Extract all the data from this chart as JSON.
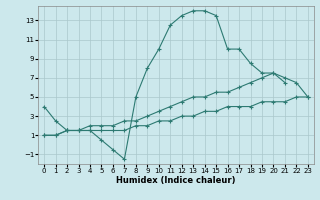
{
  "xlabel": "Humidex (Indice chaleur)",
  "bg_color": "#cce8ec",
  "grid_color": "#aac8cc",
  "line_color": "#2d7a72",
  "xlim": [
    -0.5,
    23.5
  ],
  "ylim": [
    -2.0,
    14.5
  ],
  "yticks": [
    -1,
    1,
    3,
    5,
    7,
    9,
    11,
    13
  ],
  "xticks": [
    0,
    1,
    2,
    3,
    4,
    5,
    6,
    7,
    8,
    9,
    10,
    11,
    12,
    13,
    14,
    15,
    16,
    17,
    18,
    19,
    20,
    21,
    22,
    23
  ],
  "line1_x": [
    0,
    1,
    2,
    3,
    4,
    5,
    6,
    7,
    8,
    9,
    10,
    11,
    12,
    13,
    14,
    15,
    16,
    17,
    18,
    19,
    20,
    21
  ],
  "line1_y": [
    4.0,
    2.5,
    1.5,
    1.5,
    1.5,
    0.5,
    -0.5,
    -1.5,
    5.0,
    8.0,
    10.0,
    12.5,
    13.5,
    14.0,
    14.0,
    13.5,
    10.0,
    10.0,
    8.5,
    7.5,
    7.5,
    6.5
  ],
  "line2_x": [
    0,
    1,
    2,
    3,
    4,
    5,
    6,
    7,
    8,
    9,
    10,
    11,
    12,
    13,
    14,
    15,
    16,
    17,
    18,
    19,
    20,
    21,
    22,
    23
  ],
  "line2_y": [
    1.0,
    1.0,
    1.5,
    1.5,
    2.0,
    2.0,
    2.0,
    2.5,
    2.5,
    3.0,
    3.5,
    4.0,
    4.5,
    5.0,
    5.0,
    5.5,
    5.5,
    6.0,
    6.5,
    7.0,
    7.5,
    7.0,
    6.5,
    5.0
  ],
  "line3_x": [
    0,
    1,
    2,
    3,
    4,
    5,
    6,
    7,
    8,
    9,
    10,
    11,
    12,
    13,
    14,
    15,
    16,
    17,
    18,
    19,
    20,
    21,
    22,
    23
  ],
  "line3_y": [
    1.0,
    1.0,
    1.5,
    1.5,
    1.5,
    1.5,
    1.5,
    1.5,
    2.0,
    2.0,
    2.5,
    2.5,
    3.0,
    3.0,
    3.5,
    3.5,
    4.0,
    4.0,
    4.0,
    4.5,
    4.5,
    4.5,
    5.0,
    5.0
  ]
}
